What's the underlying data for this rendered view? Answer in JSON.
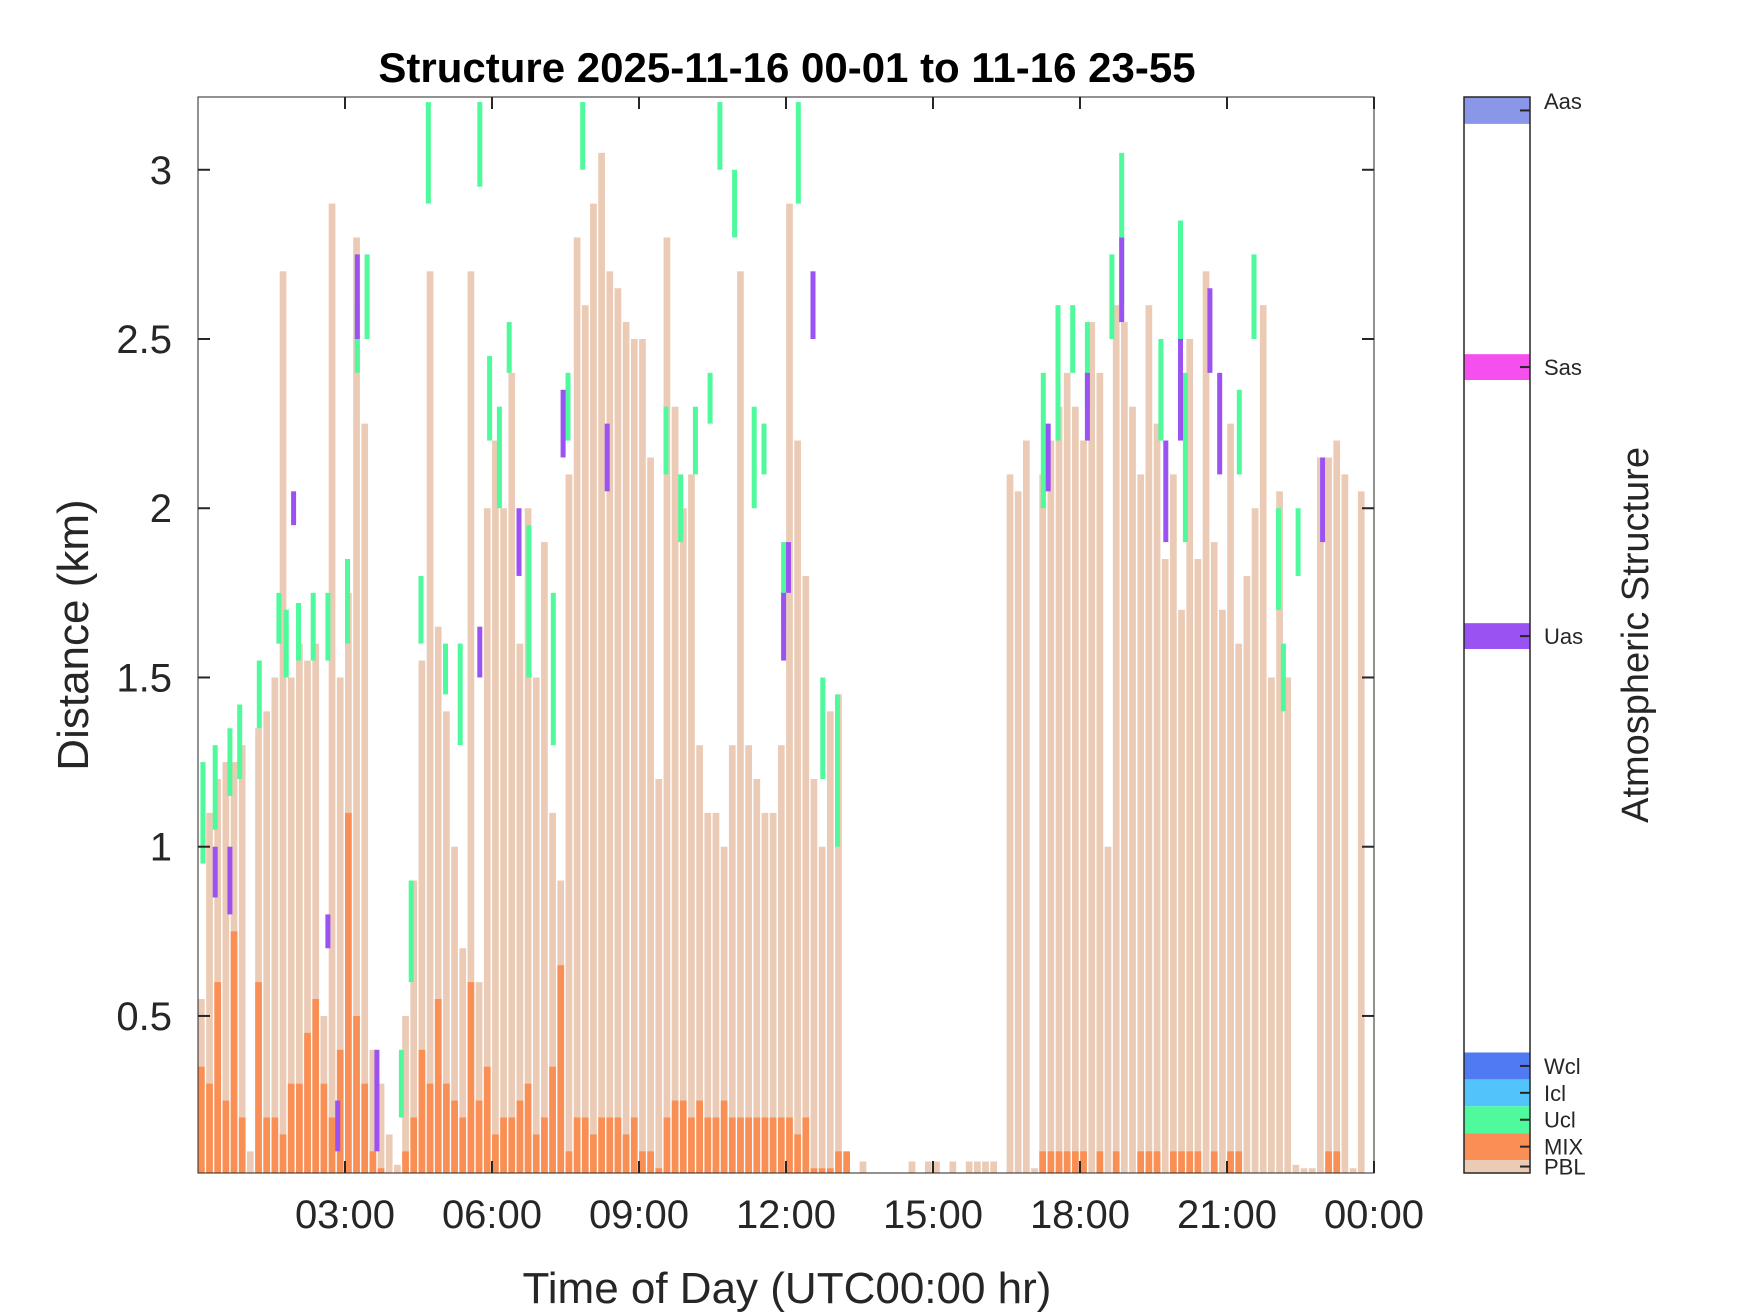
{
  "chart_data": {
    "type": "heatmap",
    "title": "Structure 2025-11-16 00-01 to 11-16 23-55",
    "xlabel": "Time of Day (UTC00:00 hr)",
    "ylabel": "Distance (km)",
    "colorbar_label": "Atmospheric Structure",
    "xlim": [
      0,
      24
    ],
    "ylim": [
      0.036,
      3.215
    ],
    "x_ticks": [
      3,
      6,
      9,
      12,
      15,
      18,
      21,
      24
    ],
    "x_tick_labels": [
      "03:00",
      "06:00",
      "09:00",
      "12:00",
      "15:00",
      "18:00",
      "21:00",
      "00:00"
    ],
    "y_ticks": [
      0.5,
      1,
      1.5,
      2,
      2.5,
      3
    ],
    "y_tick_labels": [
      "0.5",
      "1",
      "1.5",
      "2",
      "2.5",
      "3"
    ],
    "grid": false,
    "legend": "colorbar-right",
    "categories": [
      {
        "name": "Aas",
        "color": "#8a97e8"
      },
      {
        "name": "Sas",
        "color": "#f64ff0"
      },
      {
        "name": "Uas",
        "color": "#9b52f2"
      },
      {
        "name": "Wcl",
        "color": "#4f7af2"
      },
      {
        "name": "Icl",
        "color": "#52c3fb"
      },
      {
        "name": "Ucl",
        "color": "#4ffa9c"
      },
      {
        "name": "MIX",
        "color": "#f98f55"
      },
      {
        "name": "PBL",
        "color": "#ebcbb5"
      }
    ],
    "time_step_hours": 0.1667,
    "pbl_top_km": [
      0.55,
      1.1,
      1.2,
      1.25,
      1.25,
      1.3,
      0.1,
      1.35,
      1.4,
      1.5,
      2.7,
      1.5,
      1.6,
      1.55,
      1.6,
      0.5,
      2.9,
      1.5,
      1.75,
      2.8,
      2.25,
      0.4,
      0.3,
      0.15,
      0.06,
      0.5,
      0.9,
      1.55,
      2.7,
      1.65,
      1.4,
      1.0,
      0.7,
      2.7,
      0.6,
      2.0,
      2.2,
      2.0,
      2.4,
      1.6,
      2.0,
      1.5,
      1.9,
      1.1,
      0.9,
      2.1,
      2.8,
      2.6,
      2.9,
      3.05,
      2.7,
      2.65,
      2.55,
      2.5,
      2.5,
      2.15,
      1.2,
      2.8,
      2.3,
      2.0,
      2.1,
      1.3,
      1.1,
      1.1,
      1.0,
      1.3,
      2.7,
      1.3,
      1.2,
      1.1,
      1.1,
      1.3,
      2.9,
      2.2,
      1.8,
      1.2,
      1.0,
      1.4,
      1.45,
      0.07,
      0,
      0.07,
      0,
      0,
      0,
      0,
      0,
      0.07,
      0,
      0.07,
      0.07,
      0,
      0.07,
      0,
      0.07,
      0.07,
      0.07,
      0.07,
      0,
      2.1,
      2.05,
      2.2,
      0.05,
      2.1,
      2.2,
      2.3,
      2.4,
      2.3,
      2.2,
      2.55,
      2.4,
      1.0,
      2.6,
      2.55,
      2.3,
      2.1,
      2.6,
      2.25,
      1.85,
      2.1,
      1.7,
      2.5,
      1.85,
      2.7,
      1.9,
      1.7,
      2.25,
      1.6,
      1.8,
      2.0,
      2.6,
      1.5,
      2.05,
      1.5,
      0.06,
      0.05,
      0.05,
      2.15,
      2.15,
      2.2,
      2.1,
      0.05,
      2.05,
      0
    ],
    "mix_top_km": [
      0.35,
      0.3,
      0.6,
      0.25,
      0.75,
      0.2,
      0,
      0.6,
      0.2,
      0.2,
      0.15,
      0.3,
      0.3,
      0.45,
      0.55,
      0.3,
      0.2,
      0.4,
      1.1,
      0.5,
      0.3,
      0.1,
      0.05,
      0,
      0,
      0.1,
      0.2,
      0.4,
      0.3,
      0.55,
      0.3,
      0.25,
      0.2,
      0.6,
      0.25,
      0.35,
      0.15,
      0.2,
      0.2,
      0.25,
      0.3,
      0.15,
      0.2,
      0.35,
      0.65,
      0.1,
      0.2,
      0.2,
      0.15,
      0.2,
      0.2,
      0.2,
      0.15,
      0.2,
      0.1,
      0.1,
      0.05,
      0.2,
      0.25,
      0.25,
      0.2,
      0.25,
      0.2,
      0.2,
      0.25,
      0.2,
      0.2,
      0.2,
      0.2,
      0.2,
      0.2,
      0.2,
      0.2,
      0.15,
      0.2,
      0.05,
      0.05,
      0.05,
      0.1,
      0.1,
      0,
      0,
      0,
      0,
      0,
      0,
      0,
      0,
      0,
      0,
      0,
      0,
      0,
      0,
      0,
      0,
      0,
      0,
      0,
      0,
      0,
      0,
      0,
      0.1,
      0.1,
      0.1,
      0.1,
      0.1,
      0.1,
      0,
      0.1,
      0,
      0.1,
      0,
      0,
      0.1,
      0.1,
      0.1,
      0,
      0.1,
      0.1,
      0.1,
      0.1,
      0,
      0.1,
      0,
      0.1,
      0.1,
      0,
      0,
      0,
      0,
      0,
      0,
      0,
      0,
      0,
      0,
      0.1,
      0.1,
      0,
      0,
      0,
      0
    ],
    "ucl_segments": [
      [
        0.05,
        0.95,
        1.25
      ],
      [
        0.3,
        1.05,
        1.3
      ],
      [
        0.6,
        1.15,
        1.35
      ],
      [
        0.8,
        1.2,
        1.42
      ],
      [
        1.2,
        1.35,
        1.55
      ],
      [
        1.6,
        1.6,
        1.75
      ],
      [
        1.75,
        1.5,
        1.7
      ],
      [
        2.0,
        1.55,
        1.72
      ],
      [
        2.3,
        1.55,
        1.75
      ],
      [
        2.6,
        1.55,
        1.75
      ],
      [
        3.0,
        1.6,
        1.85
      ],
      [
        3.2,
        2.4,
        2.6
      ],
      [
        3.4,
        2.5,
        2.75
      ],
      [
        4.1,
        0.2,
        0.4
      ],
      [
        4.3,
        0.6,
        0.9
      ],
      [
        4.5,
        1.6,
        1.8
      ],
      [
        4.65,
        2.9,
        3.2
      ],
      [
        5.0,
        1.45,
        1.6
      ],
      [
        5.3,
        1.3,
        1.6
      ],
      [
        5.7,
        2.95,
        3.2
      ],
      [
        5.9,
        2.2,
        2.45
      ],
      [
        6.1,
        2.0,
        2.3
      ],
      [
        6.3,
        2.4,
        2.55
      ],
      [
        6.7,
        1.5,
        1.95
      ],
      [
        7.2,
        1.3,
        1.75
      ],
      [
        7.5,
        2.2,
        2.4
      ],
      [
        7.8,
        3.0,
        3.2
      ],
      [
        9.5,
        2.1,
        2.3
      ],
      [
        9.8,
        1.9,
        2.1
      ],
      [
        10.1,
        2.1,
        2.3
      ],
      [
        10.4,
        2.25,
        2.4
      ],
      [
        10.6,
        3.0,
        3.2
      ],
      [
        10.9,
        2.8,
        3.0
      ],
      [
        11.3,
        2.0,
        2.3
      ],
      [
        11.5,
        2.1,
        2.25
      ],
      [
        11.9,
        1.65,
        1.9
      ],
      [
        12.2,
        2.9,
        3.2
      ],
      [
        12.7,
        1.2,
        1.5
      ],
      [
        13.0,
        1.0,
        1.45
      ],
      [
        17.2,
        2.0,
        2.4
      ],
      [
        17.5,
        2.2,
        2.6
      ],
      [
        17.8,
        2.4,
        2.6
      ],
      [
        18.1,
        2.3,
        2.55
      ],
      [
        18.6,
        2.5,
        2.75
      ],
      [
        18.8,
        2.6,
        3.05
      ],
      [
        19.6,
        2.2,
        2.5
      ],
      [
        20.0,
        2.5,
        2.85
      ],
      [
        20.1,
        1.9,
        2.4
      ],
      [
        21.2,
        2.1,
        2.35
      ],
      [
        21.5,
        2.5,
        2.75
      ],
      [
        22.0,
        1.7,
        2.0
      ],
      [
        22.1,
        1.4,
        1.6
      ],
      [
        22.4,
        1.8,
        2.0
      ]
    ],
    "uas_segments": [
      [
        0.3,
        0.85,
        1.0
      ],
      [
        0.6,
        0.8,
        1.0
      ],
      [
        1.9,
        1.95,
        2.05
      ],
      [
        2.6,
        0.7,
        0.8
      ],
      [
        2.8,
        0.1,
        0.25
      ],
      [
        3.2,
        2.5,
        2.75
      ],
      [
        3.6,
        0.1,
        0.4
      ],
      [
        5.7,
        1.5,
        1.65
      ],
      [
        6.5,
        1.8,
        2.0
      ],
      [
        7.4,
        2.15,
        2.35
      ],
      [
        8.3,
        2.05,
        2.25
      ],
      [
        11.9,
        1.55,
        1.75
      ],
      [
        12.0,
        1.75,
        1.9
      ],
      [
        12.5,
        2.5,
        2.7
      ],
      [
        17.3,
        2.05,
        2.25
      ],
      [
        18.1,
        2.2,
        2.4
      ],
      [
        18.8,
        2.55,
        2.8
      ],
      [
        19.7,
        1.9,
        2.2
      ],
      [
        20.0,
        2.2,
        2.5
      ],
      [
        20.6,
        2.4,
        2.65
      ],
      [
        20.8,
        2.1,
        2.4
      ],
      [
        22.9,
        1.9,
        2.15
      ]
    ]
  }
}
